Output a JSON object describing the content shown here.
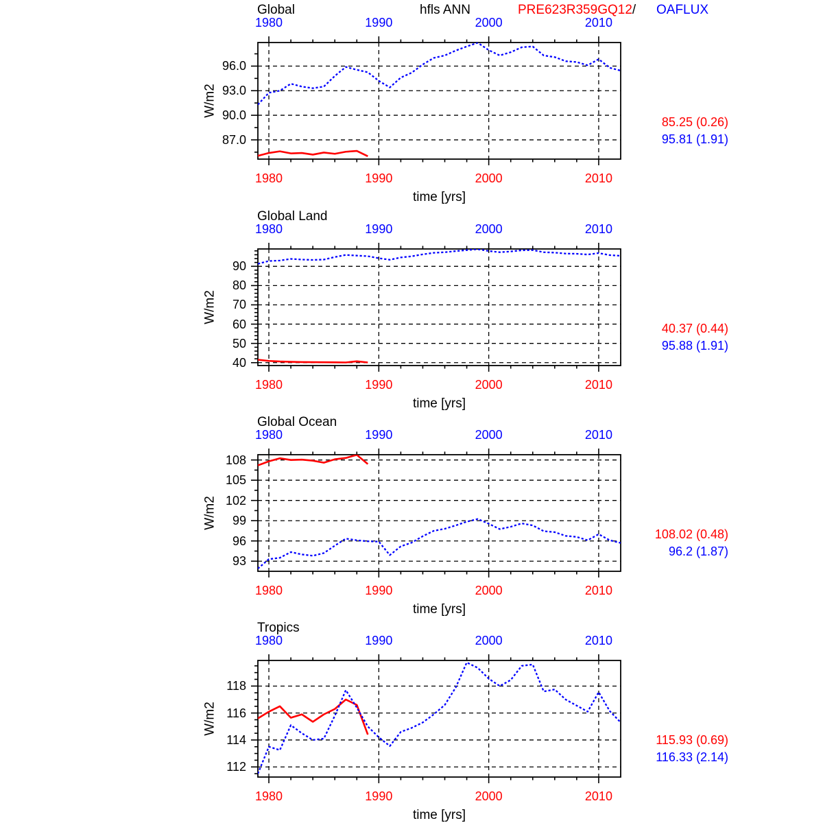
{
  "header": {
    "center_label": "hfls ANN",
    "model_label": "PRE623R359GQ12",
    "separator": "/",
    "obs_label": "OAFLUX"
  },
  "colors": {
    "model": "#ff0000",
    "obs": "#0000ff",
    "frame": "#000000",
    "grid": "#000000",
    "background": "#ffffff"
  },
  "chart_data": [
    {
      "type": "line",
      "title": "Global",
      "xlabel": "time [yrs]",
      "ylabel": "W/m2",
      "xlim": [
        1979,
        2012
      ],
      "xticks": [
        1980,
        1990,
        2000,
        2010
      ],
      "x_tick_labels": [
        "1980",
        "1990",
        "2000",
        "2010"
      ],
      "x_minor_step": 2,
      "ylim": [
        84.65,
        98.88
      ],
      "yticks": [
        87,
        90,
        93,
        96
      ],
      "ytick_labels": [
        "87.0",
        "90.0",
        "93.0",
        "96.0"
      ],
      "y_minor_step": 1.5,
      "grid": true,
      "legend_position": "none",
      "stats": {
        "model_mean": "85.25 (0.26)",
        "obs_mean": "95.81 (1.91)"
      },
      "series": [
        {
          "name": "PRE623R359GQ12",
          "role": "model",
          "style": "solid",
          "x": [
            1979,
            1980,
            1981,
            1982,
            1983,
            1984,
            1985,
            1986,
            1987,
            1988,
            1989
          ],
          "values": [
            85.05,
            85.4,
            85.6,
            85.35,
            85.4,
            85.2,
            85.45,
            85.3,
            85.55,
            85.65,
            85.0
          ]
        },
        {
          "name": "OAFLUX",
          "role": "obs",
          "style": "dashed",
          "x": [
            1979,
            1980,
            1981,
            1982,
            1983,
            1984,
            1985,
            1986,
            1987,
            1988,
            1989,
            1990,
            1991,
            1992,
            1993,
            1994,
            1995,
            1996,
            1997,
            1998,
            1999,
            2000,
            2001,
            2002,
            2003,
            2004,
            2005,
            2006,
            2007,
            2008,
            2009,
            2010,
            2011,
            2012
          ],
          "values": [
            91.3,
            92.75,
            93.0,
            93.85,
            93.5,
            93.3,
            93.5,
            94.8,
            95.9,
            95.55,
            95.25,
            94.2,
            93.4,
            94.6,
            95.2,
            96.2,
            97.0,
            97.3,
            97.9,
            98.4,
            98.85,
            97.95,
            97.3,
            97.7,
            98.3,
            98.4,
            97.3,
            97.1,
            96.6,
            96.5,
            96.1,
            96.85,
            95.8,
            95.45
          ]
        }
      ]
    },
    {
      "type": "line",
      "title": "Global Land",
      "xlabel": "time [yrs]",
      "ylabel": "W/m2",
      "xlim": [
        1979,
        2012
      ],
      "xticks": [
        1980,
        1990,
        2000,
        2010
      ],
      "x_tick_labels": [
        "1980",
        "1990",
        "2000",
        "2010"
      ],
      "x_minor_step": 2,
      "ylim": [
        38.5,
        99.0
      ],
      "yticks": [
        40,
        50,
        60,
        70,
        80,
        90
      ],
      "ytick_labels": [
        "40",
        "50",
        "60",
        "70",
        "80",
        "90"
      ],
      "y_minor_step": 2,
      "grid": true,
      "legend_position": "none",
      "stats": {
        "model_mean": "40.37 (0.44)",
        "obs_mean": "95.88 (1.91)"
      },
      "series": [
        {
          "name": "PRE623R359GQ12",
          "role": "model",
          "style": "solid",
          "x": [
            1979,
            1980,
            1981,
            1982,
            1983,
            1984,
            1985,
            1986,
            1987,
            1988,
            1989
          ],
          "values": [
            41.5,
            40.9,
            40.6,
            40.45,
            40.3,
            40.25,
            40.2,
            40.15,
            40.1,
            40.7,
            40.1
          ]
        },
        {
          "name": "OAFLUX",
          "role": "obs",
          "style": "dashed",
          "x": [
            1979,
            1980,
            1981,
            1982,
            1983,
            1984,
            1985,
            1986,
            1987,
            1988,
            1989,
            1990,
            1991,
            1992,
            1993,
            1994,
            1995,
            1996,
            1997,
            1998,
            1999,
            2000,
            2001,
            2002,
            2003,
            2004,
            2005,
            2006,
            2007,
            2008,
            2009,
            2010,
            2011,
            2012
          ],
          "values": [
            91.3,
            92.75,
            93.0,
            93.85,
            93.5,
            93.3,
            93.5,
            94.8,
            95.9,
            95.55,
            95.25,
            94.2,
            93.4,
            94.6,
            95.2,
            96.2,
            97.0,
            97.3,
            97.9,
            98.4,
            98.85,
            97.95,
            97.3,
            97.7,
            98.3,
            98.4,
            97.3,
            97.1,
            96.6,
            96.5,
            96.1,
            96.85,
            95.8,
            95.45
          ]
        }
      ]
    },
    {
      "type": "line",
      "title": "Global Ocean",
      "xlabel": "time [yrs]",
      "ylabel": "W/m2",
      "xlim": [
        1979,
        2012
      ],
      "xticks": [
        1980,
        1990,
        2000,
        2010
      ],
      "x_tick_labels": [
        "1980",
        "1990",
        "2000",
        "2010"
      ],
      "x_minor_step": 2,
      "ylim": [
        91.5,
        108.78
      ],
      "yticks": [
        93,
        96,
        99,
        102,
        105,
        108
      ],
      "ytick_labels": [
        "93",
        "96",
        "99",
        "102",
        "105",
        "108"
      ],
      "y_minor_step": 1.5,
      "grid": true,
      "legend_position": "none",
      "stats": {
        "model_mean": "108.02 (0.48)",
        "obs_mean": "96.2 (1.87)"
      },
      "series": [
        {
          "name": "PRE623R359GQ12",
          "role": "model",
          "style": "solid",
          "x": [
            1979,
            1980,
            1981,
            1982,
            1983,
            1984,
            1985,
            1986,
            1987,
            1988,
            1989
          ],
          "values": [
            107.2,
            107.8,
            108.25,
            108.0,
            108.05,
            107.9,
            107.6,
            108.1,
            108.3,
            108.75,
            107.4
          ]
        },
        {
          "name": "OAFLUX",
          "role": "obs",
          "style": "dashed",
          "x": [
            1979,
            1980,
            1981,
            1982,
            1983,
            1984,
            1985,
            1986,
            1987,
            1988,
            1989,
            1990,
            1991,
            1992,
            1993,
            1994,
            1995,
            1996,
            1997,
            1998,
            1999,
            2000,
            2001,
            2002,
            2003,
            2004,
            2005,
            2006,
            2007,
            2008,
            2009,
            2010,
            2011,
            2012
          ],
          "values": [
            91.9,
            93.3,
            93.5,
            94.35,
            94.0,
            93.8,
            94.2,
            95.3,
            96.35,
            96.1,
            95.95,
            95.9,
            93.9,
            95.2,
            95.75,
            96.7,
            97.5,
            97.8,
            98.3,
            98.85,
            99.25,
            98.55,
            97.75,
            98.1,
            98.6,
            98.3,
            97.45,
            97.3,
            96.75,
            96.6,
            96.1,
            97.0,
            96.1,
            95.7
          ]
        }
      ]
    },
    {
      "type": "line",
      "title": "Tropics",
      "xlabel": "time [yrs]",
      "ylabel": "W/m2",
      "xlim": [
        1979,
        2012
      ],
      "xticks": [
        1980,
        1990,
        2000,
        2010
      ],
      "x_tick_labels": [
        "1980",
        "1990",
        "2000",
        "2010"
      ],
      "x_minor_step": 2,
      "ylim": [
        111.25,
        119.9
      ],
      "yticks": [
        112,
        114,
        116,
        118
      ],
      "ytick_labels": [
        "112",
        "114",
        "116",
        "118"
      ],
      "y_minor_step": 0.5,
      "grid": true,
      "legend_position": "none",
      "stats": {
        "model_mean": "115.93 (0.69)",
        "obs_mean": "116.33 (2.14)"
      },
      "series": [
        {
          "name": "PRE623R359GQ12",
          "role": "model",
          "style": "solid",
          "x": [
            1979,
            1980,
            1981,
            1982,
            1983,
            1984,
            1985,
            1986,
            1987,
            1988,
            1989
          ],
          "values": [
            115.6,
            116.1,
            116.5,
            115.65,
            115.9,
            115.35,
            115.9,
            116.3,
            117.0,
            116.6,
            114.4
          ]
        },
        {
          "name": "OAFLUX",
          "role": "obs",
          "style": "dashed",
          "x": [
            1979,
            1980,
            1981,
            1982,
            1983,
            1984,
            1985,
            1986,
            1987,
            1988,
            1989,
            1990,
            1991,
            1992,
            1993,
            1994,
            1995,
            1996,
            1997,
            1998,
            1999,
            2000,
            2001,
            2002,
            2003,
            2004,
            2005,
            2006,
            2007,
            2008,
            2009,
            2010,
            2011,
            2012
          ],
          "values": [
            111.5,
            113.5,
            113.25,
            115.1,
            114.5,
            114.0,
            114.1,
            115.8,
            117.7,
            116.4,
            115.0,
            114.2,
            113.55,
            114.6,
            114.9,
            115.3,
            115.9,
            116.6,
            117.9,
            119.75,
            119.35,
            118.55,
            118.0,
            118.45,
            119.5,
            119.6,
            117.6,
            117.75,
            117.0,
            116.55,
            116.1,
            117.55,
            116.15,
            115.3
          ]
        }
      ]
    }
  ]
}
